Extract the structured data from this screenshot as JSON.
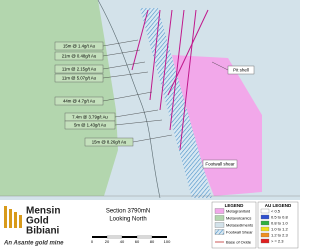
{
  "callouts": [
    "15m @ 1.4g/t Au",
    "21m @ 0.48g/t Au",
    "11m @ 2.15g/t Au",
    "11m @ 5.07g/t Au",
    "44m @ 4.7g/t Au",
    "7.4m @ 3.79g/t Au",
    "5m @ 1.43g/t Au",
    "15m @ 8.26g/t Au"
  ],
  "map_labels": {
    "pit_shell": "Pit shell",
    "footwall_shear": "Footwall shear"
  },
  "logo": {
    "line1": "Mensin",
    "line2": "Gold",
    "line3": "Bibiani",
    "tagline": "An Asante gold mine"
  },
  "section": {
    "title": "Section 3790mN",
    "subtitle": "Looking North"
  },
  "scale_bar": {
    "labels": [
      "0",
      "20",
      "40",
      "60",
      "80",
      "100"
    ]
  },
  "legend": {
    "title": "LEGEND",
    "items": [
      "Metagranitoid",
      "Metavolcanics",
      "Metasediments",
      "Footwall Shear"
    ],
    "base_of_oxide": "Base of Oxide"
  },
  "au_legend": {
    "title": "AU LEGEND",
    "items": [
      "< 0.5",
      "0.5 to 0.8",
      "0.8 to 1.0",
      "1.0 to 1.2",
      "1.2 to 2.3",
      "> = 2.3"
    ]
  }
}
